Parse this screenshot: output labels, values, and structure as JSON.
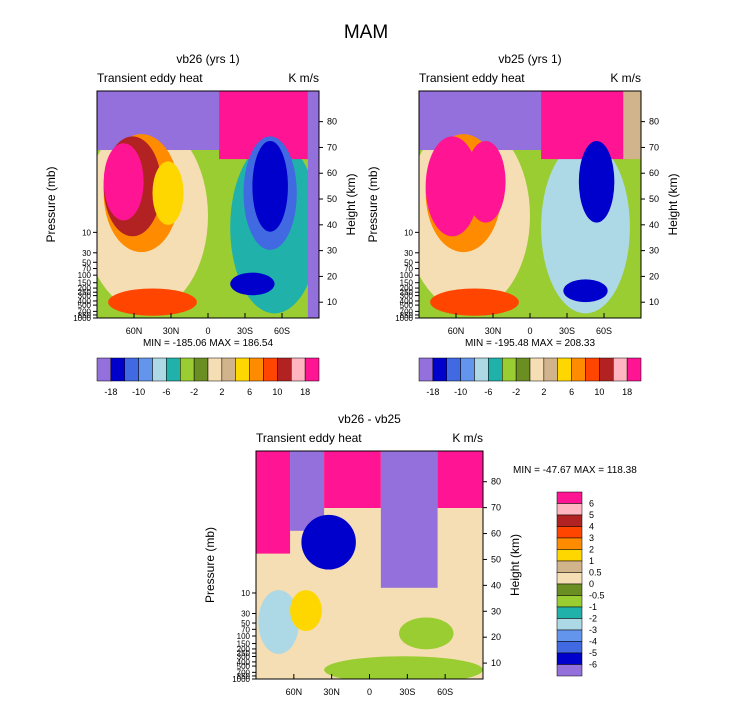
{
  "figure_title": "MAM",
  "chart_data": [
    {
      "type": "heatmap",
      "title": "vb26 (yrs 1)",
      "left_string": "Transient eddy heat",
      "right_string": "K m/s",
      "xlabel": "",
      "ylabel": "Pressure (mb)",
      "ylabel_right": "Height (km)",
      "x_ticks": [
        "60N",
        "30N",
        "0",
        "30S",
        "60S"
      ],
      "pressure_ticks": [
        "10",
        "30",
        "50",
        "70",
        "100",
        "150",
        "200",
        "250",
        "300",
        "400",
        "500",
        "700",
        "850",
        "1000"
      ],
      "height_ticks": [
        "10",
        "20",
        "30",
        "40",
        "50",
        "60",
        "70",
        "80"
      ],
      "min": -185.06,
      "max": 186.54,
      "stats_text": "MIN = -185.06   MAX = 186.54",
      "colorbar_labels": [
        "-18",
        "-10",
        "-6",
        "-2",
        "2",
        "6",
        "10",
        "18"
      ]
    },
    {
      "type": "heatmap",
      "title": "vb25 (yrs 1)",
      "left_string": "Transient eddy heat",
      "right_string": "K m/s",
      "xlabel": "",
      "ylabel": "Pressure (mb)",
      "ylabel_right": "Height (km)",
      "x_ticks": [
        "60N",
        "30N",
        "0",
        "30S",
        "60S"
      ],
      "pressure_ticks": [
        "10",
        "30",
        "50",
        "70",
        "100",
        "150",
        "200",
        "250",
        "300",
        "400",
        "500",
        "700",
        "850",
        "1000"
      ],
      "height_ticks": [
        "10",
        "20",
        "30",
        "40",
        "50",
        "60",
        "70",
        "80"
      ],
      "min": -195.48,
      "max": 208.33,
      "stats_text": "MIN = -195.48   MAX = 208.33",
      "colorbar_labels": [
        "-18",
        "-10",
        "-6",
        "-2",
        "2",
        "6",
        "10",
        "18"
      ]
    },
    {
      "type": "heatmap",
      "title": "vb26 - vb25",
      "left_string": "Transient eddy heat",
      "right_string": "K m/s",
      "xlabel": "",
      "ylabel": "Pressure (mb)",
      "ylabel_right": "Height (km)",
      "x_ticks": [
        "60N",
        "30N",
        "0",
        "30S",
        "60S"
      ],
      "pressure_ticks": [
        "10",
        "30",
        "50",
        "70",
        "100",
        "150",
        "200",
        "250",
        "300",
        "400",
        "500",
        "700",
        "850",
        "1000"
      ],
      "height_ticks": [
        "10",
        "20",
        "30",
        "40",
        "50",
        "60",
        "70",
        "80"
      ],
      "min": -47.67,
      "max": 118.38,
      "stats_text": "MIN = -47.67  MAX = 118.38",
      "colorbar_labels": [
        "6",
        "5",
        "4",
        "3",
        "2",
        "1",
        "0.5",
        "0",
        "-0.5",
        "-1",
        "-2",
        "-3",
        "-4",
        "-5",
        "-6"
      ]
    }
  ],
  "palette": [
    "#9370db",
    "#0000cd",
    "#4169e1",
    "#6495ed",
    "#add8e6",
    "#20b2aa",
    "#9acd32",
    "#6b8e23",
    "#f5deb3",
    "#d2b48c",
    "#ffd700",
    "#ff8c00",
    "#ff4500",
    "#b22222",
    "#ffb6c1",
    "#ff1493"
  ]
}
